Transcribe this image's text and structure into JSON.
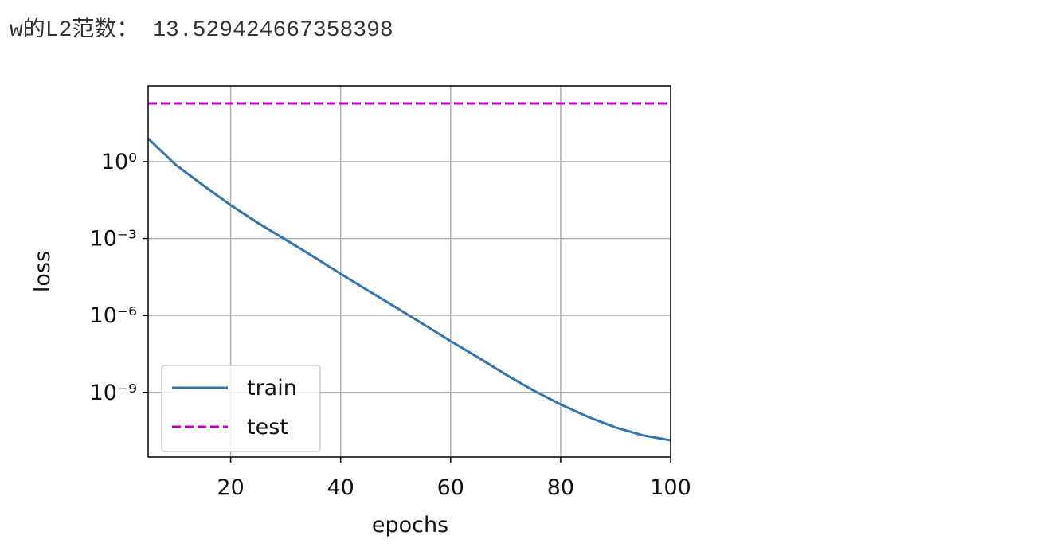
{
  "output": {
    "label": "w的L2范数：",
    "value": 13.529424667358398
  },
  "chart_data": {
    "type": "line",
    "xlabel": "epochs",
    "ylabel": "loss",
    "x": [
      5,
      10,
      15,
      20,
      25,
      30,
      35,
      40,
      45,
      50,
      55,
      60,
      65,
      70,
      75,
      80,
      85,
      90,
      95,
      100
    ],
    "series": [
      {
        "name": "train",
        "color": "#3274b0",
        "dash": false,
        "values": [
          8,
          0.76,
          0.12,
          0.02,
          0.004,
          0.0009,
          0.0002,
          4.2e-05,
          9.3e-06,
          2.1e-06,
          4.6e-07,
          1e-07,
          2.3e-08,
          5e-09,
          1.2e-09,
          3.4e-10,
          1.1e-10,
          4.3e-11,
          2.1e-11,
          1.35e-11
        ]
      },
      {
        "name": "test",
        "color": "#bf00bf",
        "dash": true,
        "values": [
          185,
          185,
          185,
          185,
          185,
          185,
          185,
          185,
          185,
          185,
          185,
          185,
          185,
          185,
          185,
          185,
          185,
          185,
          185,
          185
        ]
      }
    ],
    "xlim": [
      5,
      100
    ],
    "xticks": [
      20,
      40,
      60,
      80,
      100
    ],
    "ylim": [
      3e-12,
      891
    ],
    "ylog": true,
    "yticks": [
      {
        "value": 1,
        "label": "10⁰"
      },
      {
        "value": 0.001,
        "label": "10⁻³"
      },
      {
        "value": 1e-06,
        "label": "10⁻⁶"
      },
      {
        "value": 1e-09,
        "label": "10⁻⁹"
      }
    ],
    "grid": true,
    "legend": "lower left"
  }
}
